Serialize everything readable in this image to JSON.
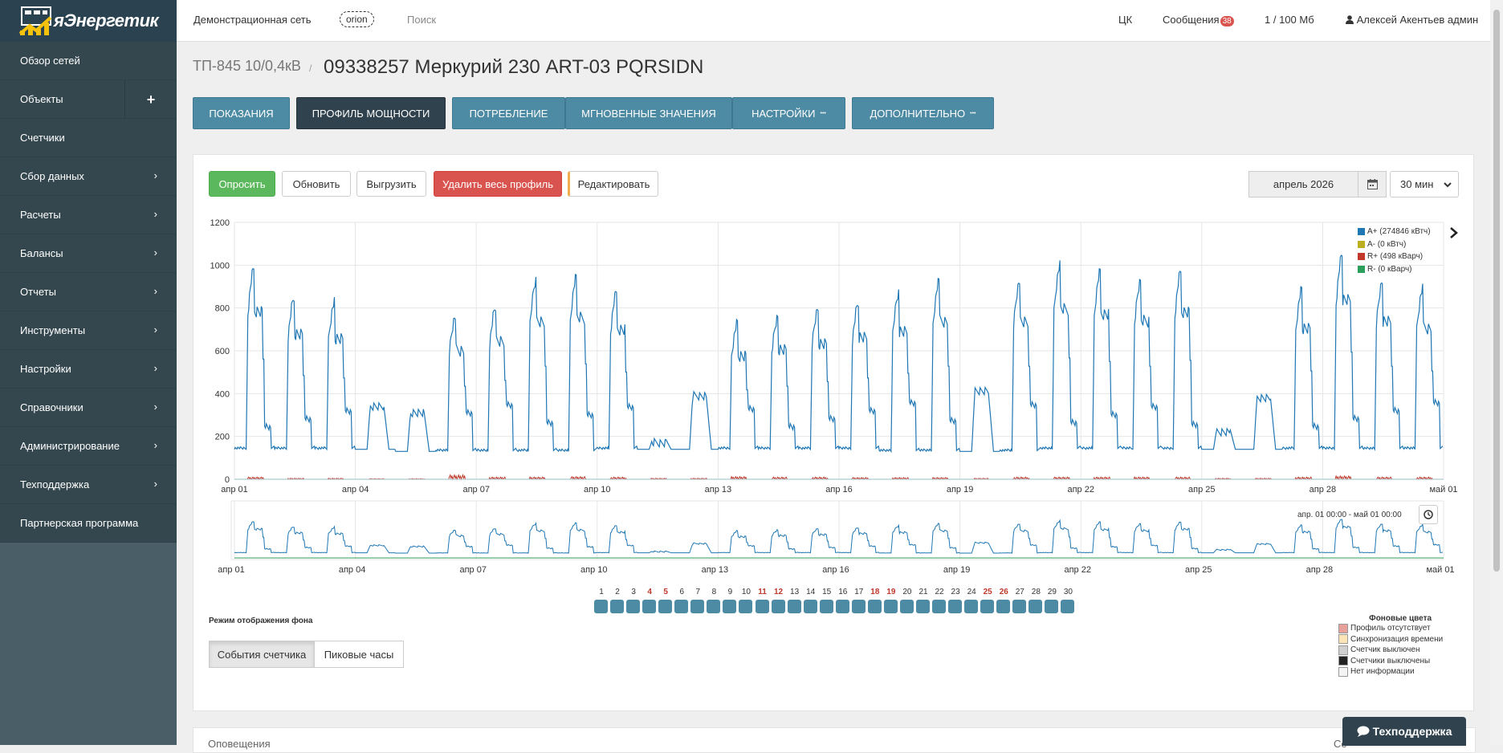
{
  "app": {
    "logo_text": "яЭнергетик"
  },
  "sidebar": {
    "items": [
      {
        "label": "Обзор сетей"
      },
      {
        "label": "Объекты",
        "has_plus": true
      },
      {
        "label": "Счетчики"
      },
      {
        "label": "Сбор данных",
        "has_chevron": true
      },
      {
        "label": "Расчеты",
        "has_chevron": true
      },
      {
        "label": "Балансы",
        "has_chevron": true
      },
      {
        "label": "Отчеты",
        "has_chevron": true
      },
      {
        "label": "Инструменты",
        "has_chevron": true
      },
      {
        "label": "Настройки",
        "has_chevron": true
      },
      {
        "label": "Справочники",
        "has_chevron": true
      },
      {
        "label": "Администрирование",
        "has_chevron": true
      },
      {
        "label": "Техподдержка",
        "has_chevron": true
      },
      {
        "label": "Партнерская программа"
      }
    ]
  },
  "topbar": {
    "network": "Демонстрационная сеть",
    "tag": "orion",
    "search_placeholder": "Поиск",
    "cc": "ЦК",
    "messages": "Сообщения",
    "messages_count": "38",
    "storage": "1 / 100 Мб",
    "user": "Алексей Акентьев админ"
  },
  "header": {
    "breadcrumb": "ТП-845 10/0,4кВ",
    "separator": "/",
    "title": "09338257 Меркурий 230 ART-03 PQRSIDN"
  },
  "tabs": [
    {
      "label": "Показания"
    },
    {
      "label": "Профиль мощности",
      "active": true
    },
    {
      "label": "Потребление"
    },
    {
      "label": "Мгновенные значения"
    },
    {
      "label": "Настройки",
      "more": true
    },
    {
      "label": "Дополнительно",
      "more": true
    }
  ],
  "toolbar": {
    "poll": "Опросить",
    "refresh": "Обновить",
    "export": "Выгрузить",
    "delete_all": "Удалить весь профиль",
    "edit": "Редактировать",
    "month": "апрель 2026",
    "interval": "30 мин"
  },
  "chart_data": {
    "type": "line",
    "x_tick_labels": [
      "апр 01",
      "апр 04",
      "апр 07",
      "апр 10",
      "апр 13",
      "апр 16",
      "апр 19",
      "апр 22",
      "апр 25",
      "апр 28",
      "май 01"
    ],
    "y_tick_labels": [
      "0",
      "200",
      "400",
      "600",
      "800",
      "1000",
      "1200"
    ],
    "ylim": [
      0,
      1200
    ],
    "xlim": [
      "апр 01",
      "май 01"
    ],
    "grid": true,
    "legend_position": "top-right",
    "legend": [
      {
        "label": "A+ (274846 кВтч)",
        "color": "#1f77b4"
      },
      {
        "label": "A- (0 кВтч)",
        "color": "#bcae1e"
      },
      {
        "label": "R+ (498 кВарч)",
        "color": "#c0392b"
      },
      {
        "label": "R- (0 кВарч)",
        "color": "#2ca05a"
      }
    ],
    "series": [
      {
        "name": "A+ (274846 кВтч)",
        "daily_base": [
          140,
          140,
          140,
          140,
          130,
          130,
          130,
          130,
          130,
          140,
          140,
          140,
          140,
          140,
          140,
          140,
          130,
          130,
          130,
          130,
          140,
          140,
          140,
          140,
          140,
          140,
          140,
          140,
          140,
          140
        ],
        "daily_peak": [
          1020,
          880,
          860,
          360,
          330,
          790,
          840,
          960,
          980,
          910,
          190,
          410,
          760,
          790,
          830,
          860,
          900,
          960,
          430,
          960,
          1030,
          1000,
          960,
          1010,
          240,
          400,
          920,
          1080,
          960,
          920
        ]
      },
      {
        "name": "A- (0 кВтч)",
        "daily_peak": [
          0,
          0,
          0,
          0,
          0,
          0,
          0,
          0,
          0,
          0,
          0,
          0,
          0,
          0,
          0,
          0,
          0,
          0,
          0,
          0,
          0,
          0,
          0,
          0,
          0,
          0,
          0,
          0,
          0,
          0
        ]
      },
      {
        "name": "R+ (498 кВарч)",
        "daily_peak": [
          10,
          5,
          5,
          3,
          3,
          20,
          10,
          10,
          12,
          10,
          5,
          5,
          12,
          10,
          10,
          8,
          8,
          8,
          5,
          10,
          10,
          10,
          10,
          10,
          5,
          5,
          10,
          15,
          10,
          10
        ]
      },
      {
        "name": "R- (0 кВарч)",
        "daily_peak": [
          0,
          0,
          0,
          0,
          0,
          0,
          0,
          0,
          0,
          0,
          0,
          0,
          0,
          0,
          0,
          0,
          0,
          0,
          0,
          0,
          0,
          0,
          0,
          0,
          0,
          0,
          0,
          0,
          0,
          0
        ]
      }
    ],
    "navigator_range": "апр. 01 00:00 - май 01 00:00"
  },
  "days": {
    "numbers": [
      "1",
      "2",
      "3",
      "4",
      "5",
      "6",
      "7",
      "8",
      "9",
      "10",
      "11",
      "12",
      "13",
      "14",
      "15",
      "16",
      "17",
      "18",
      "19",
      "20",
      "21",
      "22",
      "23",
      "24",
      "25",
      "26",
      "27",
      "28",
      "29",
      "30"
    ],
    "weekend": [
      "4",
      "5",
      "11",
      "12",
      "18",
      "19",
      "25",
      "26"
    ],
    "weekend_color": "#c0392b"
  },
  "background_mode": {
    "label": "Режим отображения фона",
    "buttons": [
      "События счетчика",
      "Пиковые часы"
    ]
  },
  "bg_legend": {
    "title": "Фоновые цвета",
    "items": [
      {
        "label": "Профиль отсутствует",
        "color": "#e8a09a"
      },
      {
        "label": "Синхронизация времени",
        "color": "#fbe5b6"
      },
      {
        "label": "Счетчик выключен",
        "color": "#cfcfcf"
      },
      {
        "label": "Счетчики выключены",
        "color": "#222222"
      },
      {
        "label": "Нет информации",
        "color": "#f4f4f4"
      }
    ]
  },
  "bottom": {
    "section_label": "Оповещения",
    "right_label": "Се"
  },
  "support": {
    "label": "Техподдержка"
  }
}
